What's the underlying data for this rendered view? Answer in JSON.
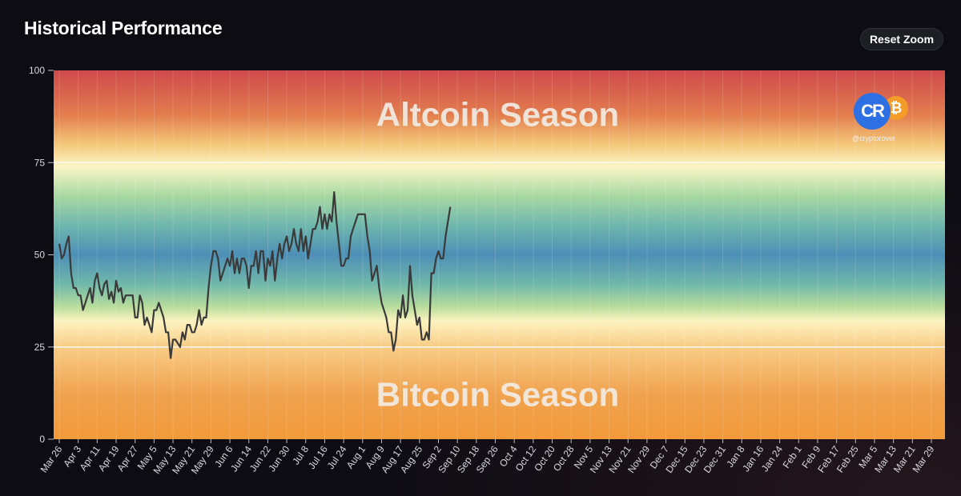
{
  "header": {
    "title": "Historical Performance",
    "reset_label": "Reset Zoom"
  },
  "logo": {
    "initials": "CR",
    "badge": "₿",
    "handle": "@cryptorover"
  },
  "chart_data": {
    "type": "line",
    "title": "Historical Performance",
    "ylim": [
      0,
      100
    ],
    "yticks": [
      0,
      25,
      50,
      75,
      100
    ],
    "grid": true,
    "legend": "none",
    "annotations": [
      {
        "text": "Altcoin Season",
        "y": 88
      },
      {
        "text": "Bitcoin Season",
        "y": 12
      }
    ],
    "threshold_lines": [
      25,
      75
    ],
    "background_bands": [
      {
        "y": 100,
        "color": "#cf4a4c"
      },
      {
        "y": 88,
        "color": "#e27d4e"
      },
      {
        "y": 80,
        "color": "#f4c779"
      },
      {
        "y": 74,
        "color": "#fcf5c6"
      },
      {
        "y": 66,
        "color": "#a9d9a2"
      },
      {
        "y": 58,
        "color": "#6fb7ad"
      },
      {
        "y": 50,
        "color": "#4d8fb6"
      },
      {
        "y": 42,
        "color": "#71b8ab"
      },
      {
        "y": 36,
        "color": "#b7dc9c"
      },
      {
        "y": 32,
        "color": "#fdf3c0"
      },
      {
        "y": 25,
        "color": "#f8cc86"
      },
      {
        "y": 12,
        "color": "#f0a24e"
      },
      {
        "y": 0,
        "color": "#f29a3a"
      }
    ],
    "line_color": "#3a3a3a",
    "x_labels": [
      "Mar 26",
      "Apr 3",
      "Apr 11",
      "Apr 19",
      "Apr 27",
      "May 5",
      "May 13",
      "May 21",
      "May 29",
      "Jun 6",
      "Jun 14",
      "Jun 22",
      "Jun 30",
      "Jul 8",
      "Jul 16",
      "Jul 24",
      "Aug 1",
      "Aug 9",
      "Aug 17",
      "Aug 25",
      "Sep 2",
      "Sep 10",
      "Sep 18",
      "Sep 26",
      "Oct 4",
      "Oct 12",
      "Oct 20",
      "Oct 28",
      "Nov 5",
      "Nov 13",
      "Nov 21",
      "Nov 29",
      "Dec 7",
      "Dec 15",
      "Dec 23",
      "Dec 31",
      "Jan 8",
      "Jan 16",
      "Jan 24",
      "Feb 1",
      "Feb 9",
      "Feb 17",
      "Feb 25",
      "Mar 5",
      "Mar 13",
      "Mar 21",
      "Mar 29"
    ],
    "x_label_step_days": 8,
    "series": [
      {
        "values": [
          53,
          49,
          50,
          53,
          55,
          45,
          41,
          41,
          39,
          39,
          35,
          37,
          39,
          41,
          37,
          43,
          45,
          41,
          39,
          42,
          43,
          38,
          40,
          37,
          43,
          40,
          41,
          37,
          39,
          39,
          39,
          39,
          33,
          33,
          39,
          37,
          31,
          33,
          31,
          29,
          35,
          35,
          37,
          35,
          33,
          29,
          29,
          22,
          27,
          27,
          26,
          25,
          29,
          27,
          31,
          31,
          29,
          29,
          31,
          35,
          31,
          33,
          33,
          41,
          47,
          51,
          51,
          49,
          43,
          45,
          47,
          49,
          47,
          51,
          45,
          49,
          45,
          49,
          49,
          47,
          41,
          47,
          47,
          51,
          45,
          51,
          51,
          43,
          49,
          47,
          51,
          43,
          49,
          53,
          49,
          53,
          55,
          51,
          53,
          57,
          53,
          51,
          57,
          51,
          55,
          49,
          53,
          57,
          57,
          59,
          63,
          57,
          61,
          57,
          61,
          59,
          67,
          59,
          53,
          47,
          47,
          49,
          49,
          55,
          57,
          59,
          61,
          61,
          61,
          61,
          55,
          51,
          43,
          45,
          47,
          41,
          37,
          35,
          33,
          29,
          29,
          24,
          27,
          35,
          33,
          39,
          33,
          35,
          47,
          39,
          35,
          31,
          33,
          27,
          27,
          29,
          27,
          45,
          45,
          49,
          51,
          49,
          49,
          55,
          59,
          63
        ]
      }
    ]
  }
}
